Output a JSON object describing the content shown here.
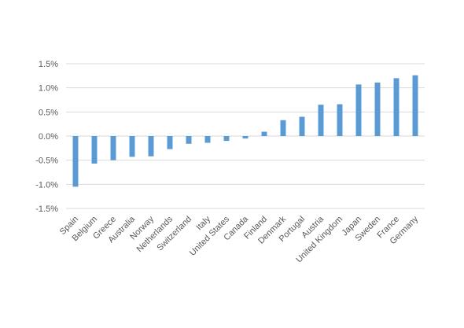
{
  "chart_data": {
    "type": "bar",
    "title": "",
    "xlabel": "",
    "ylabel": "",
    "categories": [
      "Spain",
      "Belgium",
      "Greece",
      "Australia",
      "Norway",
      "Netherlands",
      "Switzerland",
      "Italy",
      "United States",
      "Canada",
      "Finland",
      "Denmark",
      "Portugal",
      "Austria",
      "United Kingdom",
      "Japan",
      "Sweden",
      "France",
      "Germany"
    ],
    "values": [
      -1.05,
      -0.57,
      -0.5,
      -0.43,
      -0.42,
      -0.27,
      -0.16,
      -0.14,
      -0.1,
      -0.05,
      0.09,
      0.33,
      0.4,
      0.65,
      0.66,
      1.07,
      1.11,
      1.2,
      1.26
    ],
    "y_ticks": [
      "1.5%",
      "1.0%",
      "0.5%",
      "0.0%",
      "-0.5%",
      "-1.0%",
      "-1.5%"
    ],
    "y_tick_values": [
      1.5,
      1.0,
      0.5,
      0.0,
      -0.5,
      -1.0,
      -1.5
    ],
    "ylim": [
      -1.5,
      1.5
    ],
    "grid": true,
    "legend": "none",
    "bar_color": "#5b9bd5"
  }
}
